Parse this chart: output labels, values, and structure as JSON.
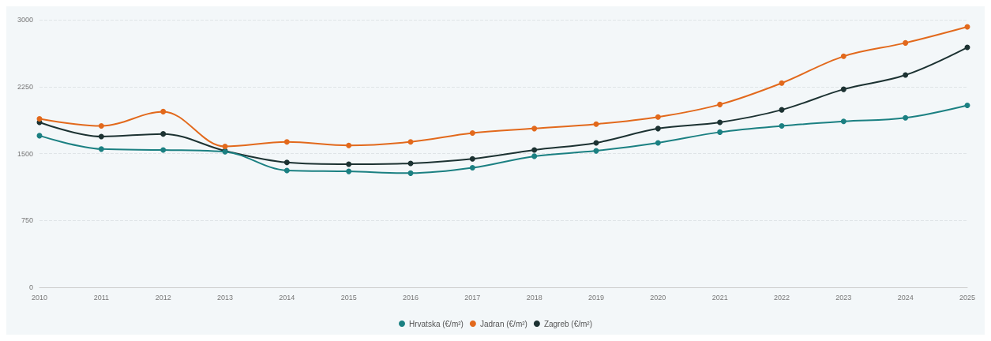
{
  "chart_data": {
    "type": "line",
    "categories": [
      "2010",
      "2011",
      "2012",
      "2013",
      "2014",
      "2015",
      "2016",
      "2017",
      "2018",
      "2019",
      "2020",
      "2021",
      "2022",
      "2023",
      "2024",
      "2025"
    ],
    "series": [
      {
        "name": "Hrvatska (€/m²)",
        "color": "#1b8082",
        "values": [
          1700,
          1550,
          1540,
          1520,
          1310,
          1300,
          1280,
          1340,
          1470,
          1530,
          1620,
          1740,
          1810,
          1860,
          1900,
          2040
        ]
      },
      {
        "name": "Jadran (€/m²)",
        "color": "#e2691c",
        "values": [
          1890,
          1810,
          1970,
          1580,
          1630,
          1590,
          1630,
          1730,
          1780,
          1830,
          1910,
          2050,
          2290,
          2590,
          2740,
          2920
        ]
      },
      {
        "name": "Zagreb (€/m²)",
        "color": "#1c3232",
        "values": [
          1850,
          1690,
          1720,
          1530,
          1400,
          1380,
          1390,
          1440,
          1540,
          1620,
          1780,
          1850,
          1990,
          2220,
          2380,
          2690
        ]
      }
    ],
    "ylim": [
      0,
      3000
    ],
    "yticks": [
      0,
      750,
      1500,
      2250,
      3000
    ],
    "grid": "y",
    "legend": "bottom",
    "marker": "circle",
    "line_style": "solid"
  }
}
